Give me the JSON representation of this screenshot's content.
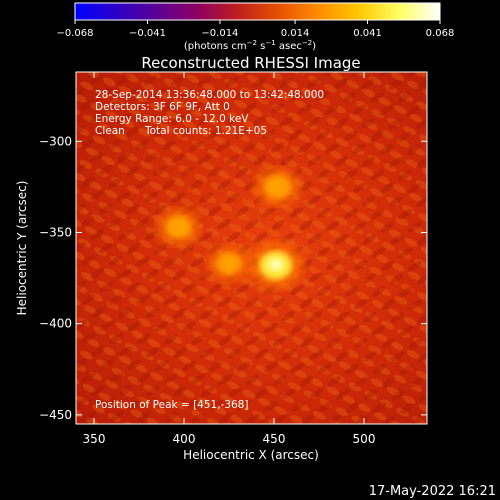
{
  "colorbar": {
    "ticks": [
      "−0.068",
      "−0.041",
      "−0.014",
      "0.014",
      "0.041",
      "0.068"
    ],
    "tick_values": [
      -0.068,
      -0.041,
      -0.014,
      0.014,
      0.041,
      0.068
    ],
    "unit_label": "(photons cm",
    "unit_sup1": "−2",
    "unit_mid": " s",
    "unit_sup2": "−1",
    "unit_end": " asec",
    "unit_sup3": "−2",
    "unit_close": ")",
    "colors": [
      "#0000ff",
      "#2a00c8",
      "#5a0096",
      "#8c0064",
      "#be1e1e",
      "#e65000",
      "#ff8c00",
      "#ffc800",
      "#ffff64",
      "#ffffff"
    ]
  },
  "title": "Reconstructed RHESSI Image",
  "info": {
    "line1": "28-Sep-2014 13:36:48.000 to 13:42:48.000",
    "line2": "Detectors: 3F 6F 9F, Att 0",
    "line3": "Energy Range: 6.0 - 12.0 keV",
    "line4a": "Clean",
    "line4b": "Total counts: 1.21E+05"
  },
  "peak_label": "Position of Peak = [451,-368]",
  "footer_date": "17-May-2022 16:21",
  "chart_data": {
    "type": "heatmap",
    "title": "Reconstructed RHESSI Image",
    "xlabel": "Heliocentric X (arcsec)",
    "ylabel": "Heliocentric Y (arcsec)",
    "x_ticks": [
      "350",
      "400",
      "450",
      "500"
    ],
    "x_tick_values": [
      350,
      400,
      450,
      500
    ],
    "y_ticks": [
      "−300",
      "−350",
      "−400",
      "−450"
    ],
    "y_tick_values": [
      -300,
      -350,
      -400,
      -450
    ],
    "xlim": [
      340,
      535
    ],
    "ylim": [
      -455,
      -262
    ],
    "sources": [
      {
        "x": 451,
        "y": -368,
        "peak": 0.068
      },
      {
        "x": 452,
        "y": -325,
        "peak": 0.045
      },
      {
        "x": 397,
        "y": -347,
        "peak": 0.042
      },
      {
        "x": 425,
        "y": -367,
        "peak": 0.038
      }
    ]
  }
}
